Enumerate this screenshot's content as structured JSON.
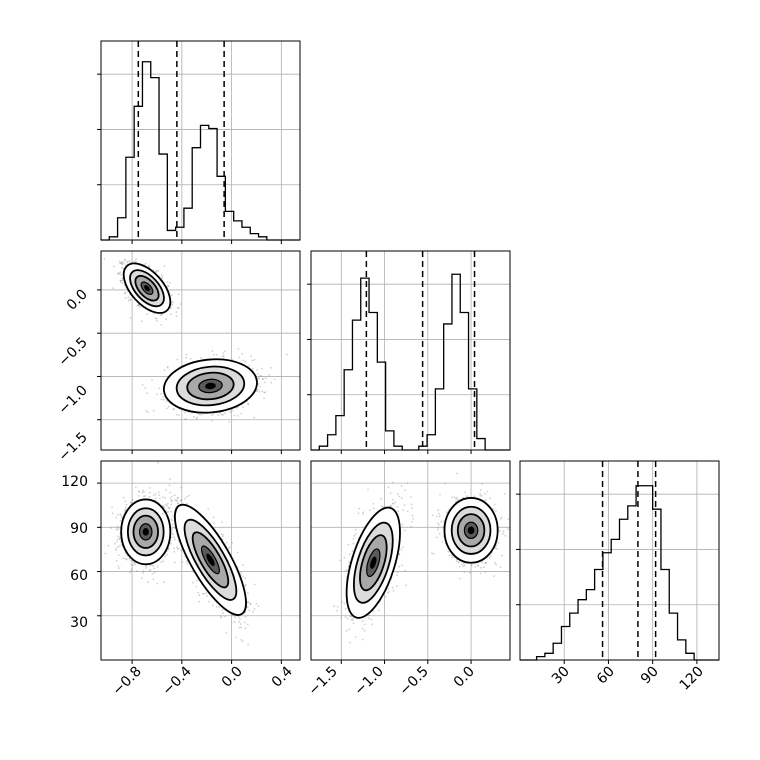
{
  "chart_data": {
    "type": "corner",
    "parameters": [
      "",
      "",
      ""
    ],
    "style": {
      "grid": true,
      "hist_color": "#000000",
      "quantile_line": "dashed",
      "point_color": "#808080"
    },
    "panels": [
      {
        "id": "hist-p1",
        "type": "histogram",
        "row": 0,
        "col": 0,
        "xlim": [
          -1.05,
          0.55
        ],
        "bin_edges": [
          -1.05,
          -0.9833,
          -0.9167,
          -0.85,
          -0.7833,
          -0.7167,
          -0.65,
          -0.5833,
          -0.5167,
          -0.45,
          -0.3833,
          -0.3167,
          -0.25,
          -0.1833,
          -0.1167,
          -0.05,
          0.0167,
          0.0833,
          0.15,
          0.2167,
          0.2833,
          0.35,
          0.4167,
          0.4833,
          0.55
        ],
        "counts": [
          0,
          1,
          7,
          26,
          42,
          56,
          51,
          27,
          3,
          4,
          10,
          29,
          36,
          35,
          20,
          9,
          6,
          4,
          2,
          1,
          0,
          0,
          0,
          0
        ],
        "ymax": 60,
        "quantiles": [
          -0.75,
          -0.44,
          -0.06
        ]
      },
      {
        "id": "hist-p2",
        "type": "histogram",
        "row": 1,
        "col": 1,
        "xlim": [
          -1.85,
          0.45
        ],
        "bin_edges": [
          -1.85,
          -1.7542,
          -1.6583,
          -1.5625,
          -1.4667,
          -1.3708,
          -1.275,
          -1.1792,
          -1.0833,
          -0.9875,
          -0.8917,
          -0.7958,
          -0.7,
          -0.6042,
          -0.5083,
          -0.4125,
          -0.3167,
          -0.2208,
          -0.125,
          -0.0292,
          0.0667,
          0.1625,
          0.2583,
          0.3542,
          0.45
        ],
        "counts": [
          0,
          1,
          4,
          9,
          21,
          34,
          45,
          36,
          23,
          5,
          1,
          0,
          0,
          1,
          4,
          16,
          33,
          46,
          36,
          16,
          3,
          0,
          0,
          0
        ],
        "ymax": 50,
        "quantiles": [
          -1.21,
          -0.56,
          0.04
        ]
      },
      {
        "id": "hist-p3",
        "type": "histogram",
        "row": 2,
        "col": 2,
        "xlim": [
          0,
          135
        ],
        "bin_edges": [
          0,
          5.625,
          11.25,
          16.875,
          22.5,
          28.125,
          33.75,
          39.375,
          45,
          50.625,
          56.25,
          61.875,
          67.5,
          73.125,
          78.75,
          84.375,
          90,
          95.625,
          101.25,
          106.875,
          112.5,
          118.125,
          123.75,
          129.375,
          135
        ],
        "counts": [
          0,
          0,
          1,
          2,
          5,
          10,
          14,
          18,
          21,
          27,
          32,
          36,
          42,
          46,
          52,
          52,
          45,
          27,
          14,
          6,
          2,
          0,
          0,
          0
        ],
        "ymax": 57,
        "quantiles": [
          56,
          80,
          92
        ]
      },
      {
        "id": "scatter-p1-p2",
        "type": "scatter2d",
        "row": 1,
        "col": 0,
        "xlim": [
          -1.05,
          0.55
        ],
        "ylim": [
          -1.85,
          0.45
        ],
        "clusters": [
          {
            "cx": -0.68,
            "cy": 0.02,
            "sx": 0.085,
            "sy": 0.13,
            "rho": -0.55,
            "n": 1400
          },
          {
            "cx": -0.17,
            "cy": -1.11,
            "sx": 0.17,
            "sy": 0.14,
            "rho": 0.12,
            "n": 1400
          }
        ]
      },
      {
        "id": "scatter-p1-p3",
        "type": "scatter2d",
        "row": 2,
        "col": 0,
        "xlim": [
          -1.05,
          0.55
        ],
        "ylim": [
          0,
          135
        ],
        "clusters": [
          {
            "cx": -0.69,
            "cy": 87,
            "sx": 0.09,
            "sy": 10,
            "rho": 0.0,
            "n": 1400
          },
          {
            "cx": -0.17,
            "cy": 68,
            "sx": 0.13,
            "sy": 17,
            "rho": -0.78,
            "n": 1400
          }
        ]
      },
      {
        "id": "scatter-p2-p3",
        "type": "scatter2d",
        "row": 2,
        "col": 1,
        "xlim": [
          -1.85,
          0.45
        ],
        "ylim": [
          0,
          135
        ],
        "clusters": [
          {
            "cx": -1.13,
            "cy": 66,
            "sx": 0.14,
            "sy": 17,
            "rho": 0.55,
            "n": 1400
          },
          {
            "cx": 0.0,
            "cy": 88,
            "sx": 0.14,
            "sy": 10,
            "rho": 0.0,
            "n": 1400
          }
        ]
      }
    ],
    "ticks": {
      "p1_x": [
        "−0.8",
        "−0.4",
        "0.0",
        "0.4"
      ],
      "p1_x_values": [
        -0.8,
        -0.4,
        0.0,
        0.4
      ],
      "p2_x": [
        "−1.5",
        "−1.0",
        "−0.5",
        "0.0"
      ],
      "p2_x_values": [
        -1.5,
        -1.0,
        -0.5,
        0.0
      ],
      "p2_y": [
        "0.0",
        "−0.5",
        "−1.0",
        "−1.5"
      ],
      "p2_y_values": [
        0.0,
        -0.5,
        -1.0,
        -1.5
      ],
      "p3_x": [
        "30",
        "60",
        "90",
        "120"
      ],
      "p3_x_values": [
        30,
        60,
        90,
        120
      ],
      "p3_y": [
        "120",
        "90",
        "60",
        "30"
      ],
      "p3_y_values": [
        120,
        90,
        60,
        30
      ]
    }
  }
}
